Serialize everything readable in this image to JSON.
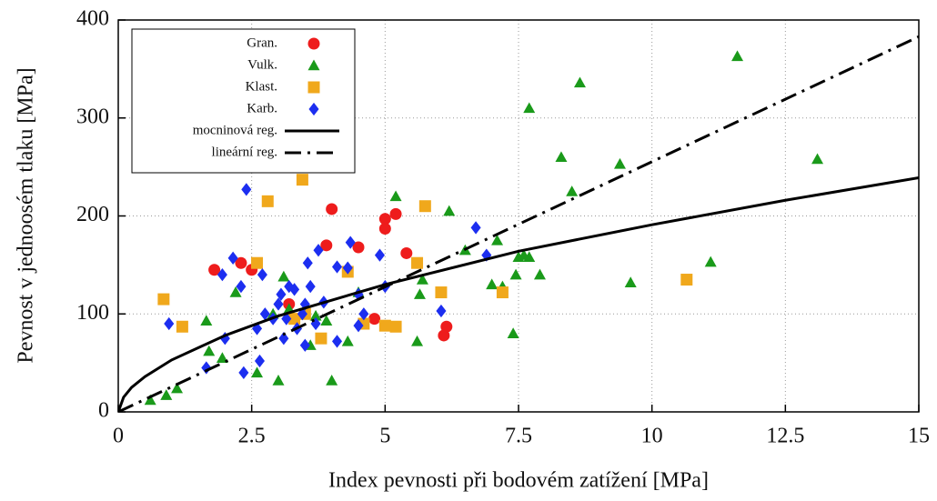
{
  "chart_data": {
    "type": "scatter",
    "x_label": "Index pevnosti při bodovém zatížení [MPa]",
    "y_label": "Pevnost v jednoosém tlaku [MPa]",
    "xlim": [
      0,
      15
    ],
    "ylim": [
      0,
      400
    ],
    "xticks": [
      0,
      2.5,
      5,
      7.5,
      10,
      12.5,
      15
    ],
    "yticks": [
      0,
      100,
      200,
      300,
      400
    ],
    "grid": true,
    "legend_position": "top-left",
    "series": [
      {
        "name": "Gran.",
        "color": "#ee1c1c",
        "marker": "circle",
        "x": [
          1.8,
          2.3,
          2.5,
          3.2,
          3.9,
          4.0,
          4.5,
          4.8,
          5.0,
          5.0,
          5.2,
          5.4,
          6.1,
          6.15
        ],
        "values": [
          145,
          152,
          145,
          110,
          170,
          207,
          168,
          95,
          187,
          197,
          202,
          162,
          78,
          87
        ]
      },
      {
        "name": "Vulk.",
        "color": "#1a9a1a",
        "marker": "triangle",
        "x": [
          0.6,
          0.9,
          1.1,
          1.7,
          1.65,
          1.95,
          2.2,
          2.6,
          2.9,
          3.0,
          3.1,
          3.2,
          3.6,
          3.7,
          3.9,
          4.0,
          4.3,
          4.5,
          5.2,
          5.6,
          5.65,
          5.7,
          6.2,
          6.5,
          7.0,
          7.1,
          7.2,
          7.4,
          7.45,
          7.5,
          7.6,
          7.7,
          7.7,
          7.9,
          8.3,
          8.5,
          8.65,
          9.4,
          9.6,
          11.1,
          11.6,
          13.1
        ],
        "values": [
          12,
          17,
          24,
          62,
          93,
          55,
          122,
          40,
          100,
          32,
          138,
          105,
          68,
          98,
          93,
          32,
          72,
          122,
          220,
          72,
          120,
          135,
          205,
          165,
          130,
          175,
          128,
          80,
          140,
          158,
          160,
          158,
          310,
          140,
          260,
          225,
          336,
          253,
          132,
          153,
          363,
          258
        ]
      },
      {
        "name": "Klast.",
        "color": "#f0a81c",
        "marker": "square",
        "x": [
          0.85,
          1.2,
          2.6,
          2.8,
          3.3,
          3.45,
          3.5,
          3.8,
          4.3,
          4.6,
          5.0,
          5.2,
          5.6,
          5.75,
          6.05,
          7.2,
          10.65
        ],
        "values": [
          115,
          87,
          152,
          215,
          95,
          237,
          100,
          75,
          143,
          90,
          88,
          87,
          152,
          210,
          122,
          122,
          135
        ]
      },
      {
        "name": "Karb.",
        "color": "#1c2ef0",
        "marker": "diamond",
        "x": [
          0.95,
          1.65,
          1.95,
          2.0,
          2.15,
          2.3,
          2.35,
          2.4,
          2.6,
          2.65,
          2.7,
          2.75,
          2.9,
          3.0,
          3.05,
          3.1,
          3.15,
          3.2,
          3.3,
          3.35,
          3.45,
          3.5,
          3.5,
          3.55,
          3.6,
          3.7,
          3.75,
          3.85,
          4.1,
          4.1,
          4.3,
          4.35,
          4.5,
          4.6,
          4.5,
          4.9,
          5.0,
          6.05,
          6.7,
          6.9
        ],
        "values": [
          90,
          45,
          140,
          75,
          157,
          128,
          40,
          227,
          85,
          52,
          140,
          100,
          95,
          110,
          120,
          75,
          95,
          128,
          125,
          85,
          100,
          110,
          68,
          152,
          128,
          90,
          165,
          112,
          72,
          148,
          147,
          173,
          120,
          100,
          88,
          160,
          128,
          103,
          188,
          160
        ]
      },
      {
        "name": "mocninová reg.",
        "color": "#000000",
        "line_style": "solid",
        "x": [
          0,
          0.1,
          0.25,
          0.5,
          1,
          2,
          3,
          5,
          7.5,
          10,
          12.5,
          15
        ],
        "values": [
          0,
          15,
          25,
          36,
          53,
          78,
          98,
          130,
          164,
          191,
          216,
          239
        ]
      },
      {
        "name": "lineární reg.",
        "color": "#000000",
        "line_style": "dashdot",
        "x": [
          0,
          15
        ],
        "values": [
          0,
          383
        ]
      }
    ]
  }
}
